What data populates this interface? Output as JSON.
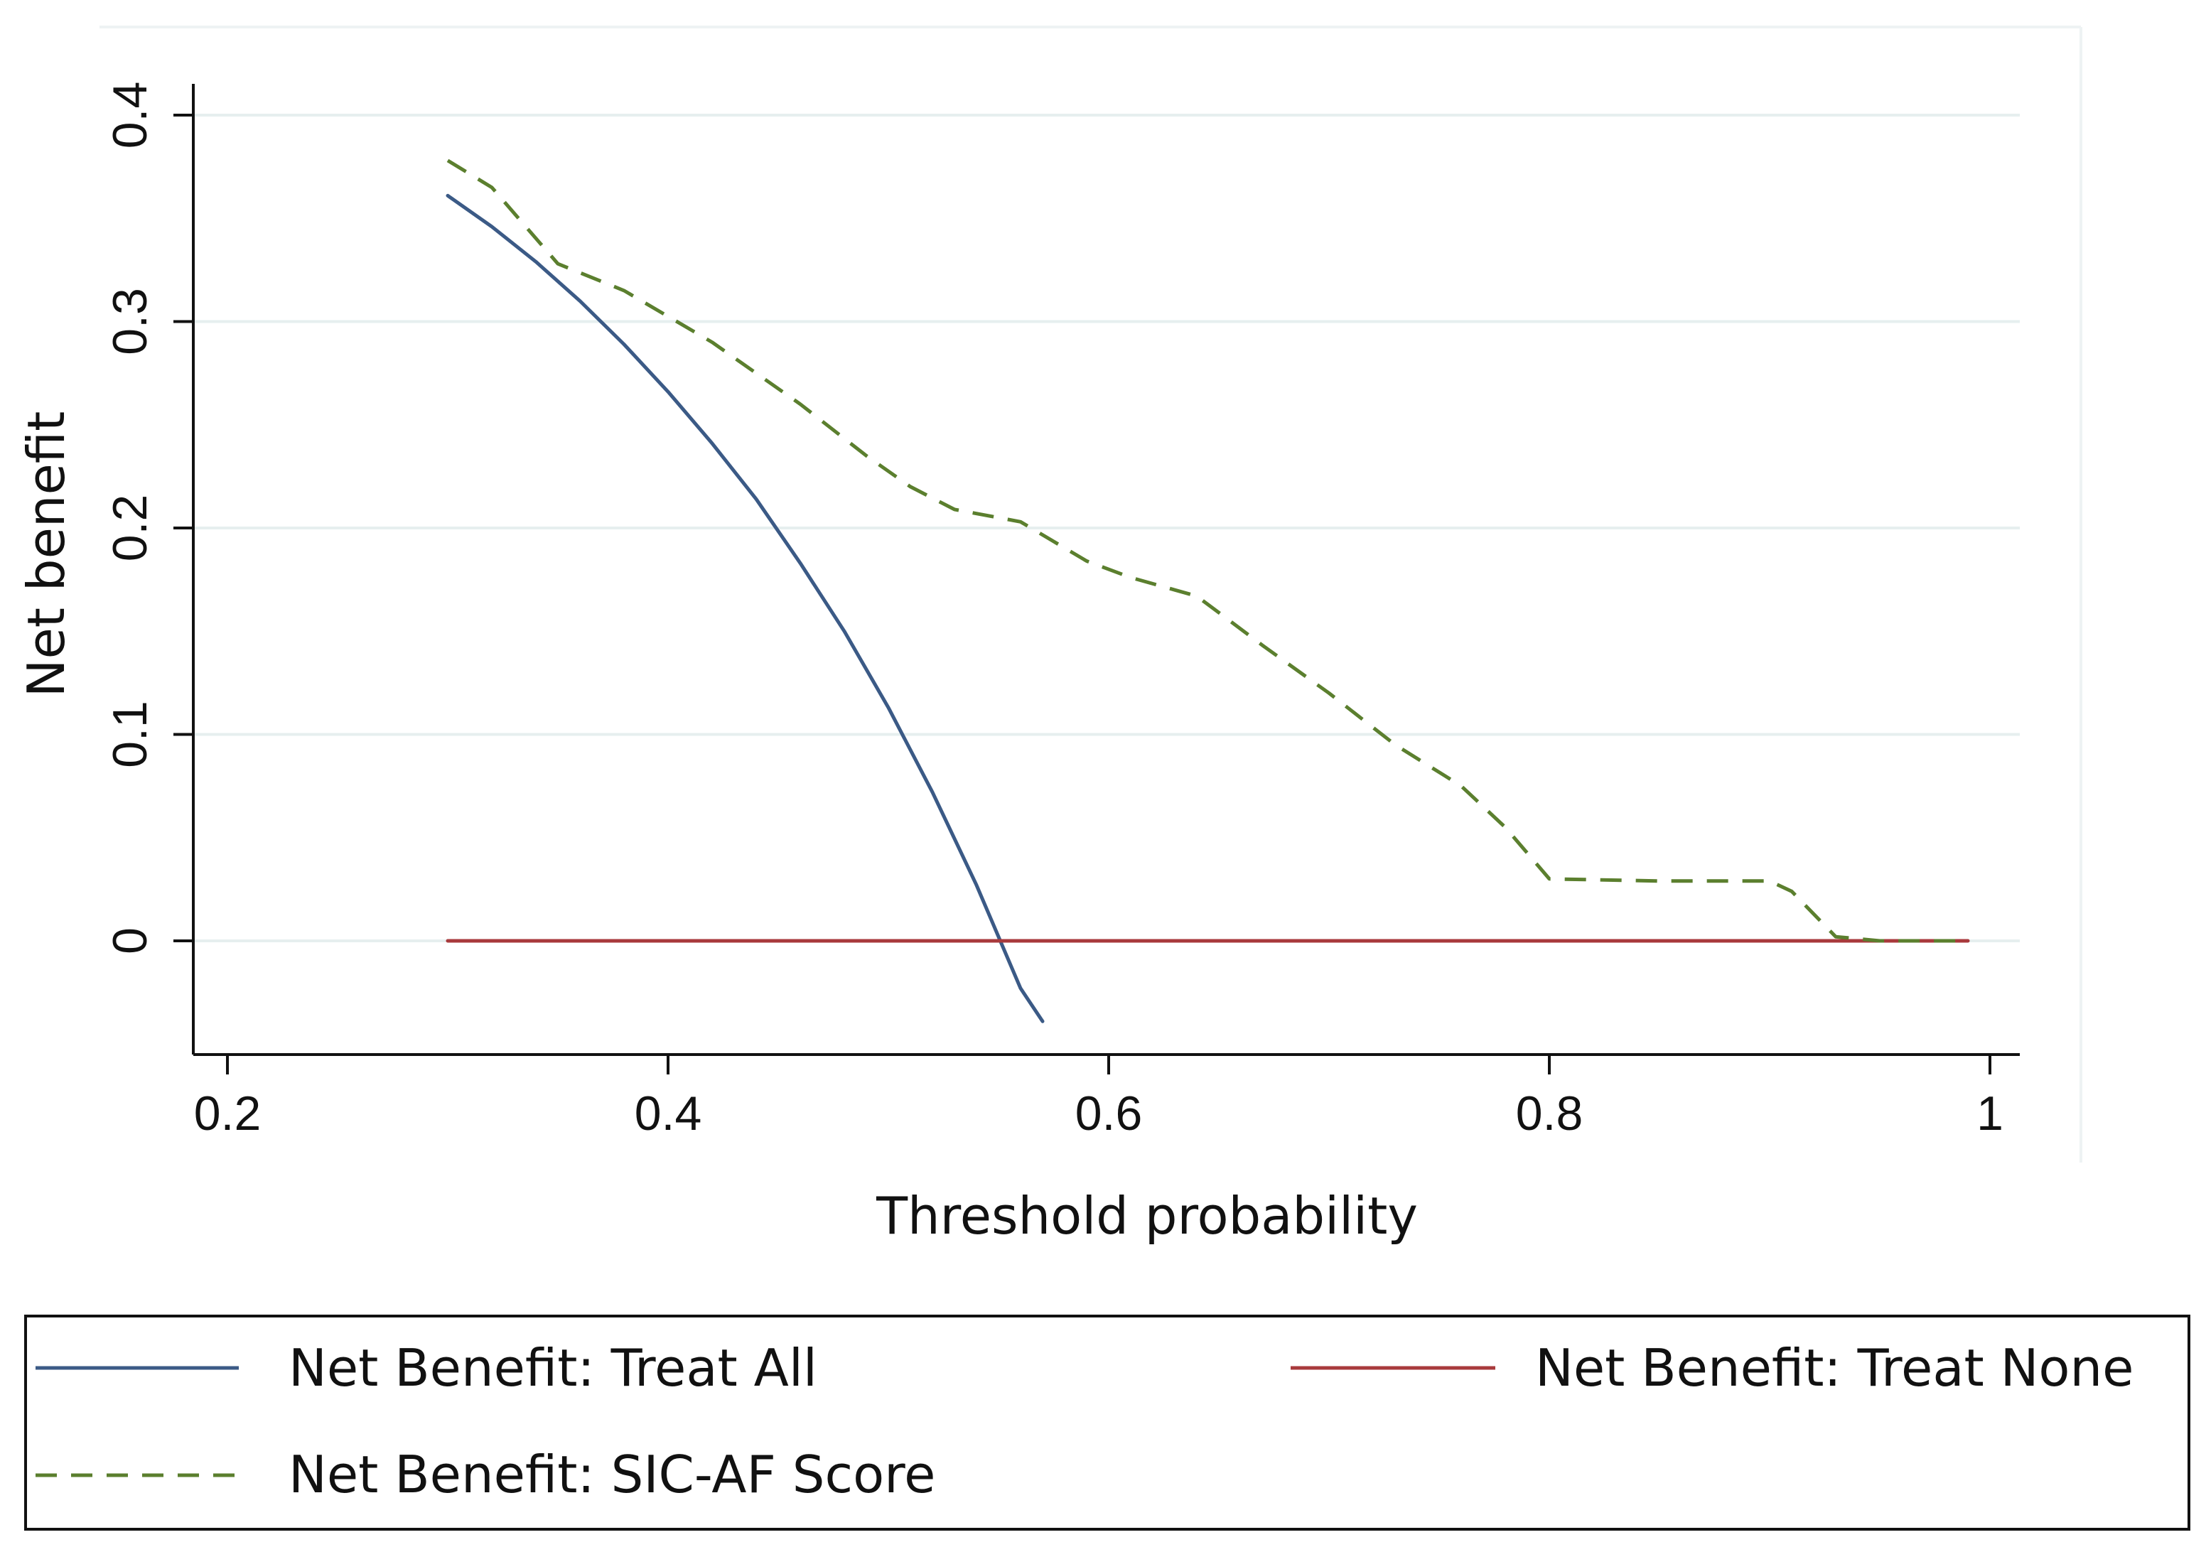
{
  "chart_data": {
    "type": "line",
    "title": "",
    "xlabel": "Threshold probability",
    "ylabel": "Net benefit",
    "xlim": [
      0.2,
      1.0
    ],
    "ylim": [
      -0.05,
      0.4
    ],
    "x_ticks": [
      {
        "value": 0.2,
        "label": "0.2"
      },
      {
        "value": 0.4,
        "label": "0.4"
      },
      {
        "value": 0.6,
        "label": "0.6"
      },
      {
        "value": 0.8,
        "label": "0.8"
      },
      {
        "value": 1.0,
        "label": "1"
      }
    ],
    "y_ticks": [
      {
        "value": 0,
        "label": "0"
      },
      {
        "value": 0.1,
        "label": "0.1"
      },
      {
        "value": 0.2,
        "label": "0.2"
      },
      {
        "value": 0.3,
        "label": "0.3"
      },
      {
        "value": 0.4,
        "label": "0.4"
      }
    ],
    "grid": true,
    "legend_position": "bottom",
    "series": [
      {
        "name": "Net Benefit: Treat All",
        "color": "#3b5a86",
        "dash": "solid",
        "x": [
          0.3,
          0.32,
          0.34,
          0.36,
          0.38,
          0.4,
          0.42,
          0.44,
          0.46,
          0.48,
          0.5,
          0.52,
          0.54,
          0.56,
          0.57
        ],
        "y": [
          0.361,
          0.346,
          0.329,
          0.31,
          0.289,
          0.266,
          0.241,
          0.214,
          0.183,
          0.15,
          0.113,
          0.072,
          0.027,
          -0.023,
          -0.039
        ]
      },
      {
        "name": "Net Benefit: Treat None",
        "color": "#a83a3c",
        "dash": "solid",
        "x": [
          0.3,
          0.99
        ],
        "y": [
          0,
          0
        ]
      },
      {
        "name": "Net Benefit: SIC-AF Score",
        "color": "#5b7f2e",
        "dash": "dashed",
        "x": [
          0.3,
          0.32,
          0.35,
          0.38,
          0.42,
          0.46,
          0.49,
          0.51,
          0.53,
          0.56,
          0.59,
          0.61,
          0.64,
          0.67,
          0.7,
          0.73,
          0.76,
          0.78,
          0.8,
          0.85,
          0.9,
          0.91,
          0.93,
          0.95,
          0.99
        ],
        "y": [
          0.378,
          0.365,
          0.328,
          0.315,
          0.29,
          0.26,
          0.235,
          0.22,
          0.209,
          0.203,
          0.184,
          0.176,
          0.167,
          0.143,
          0.12,
          0.095,
          0.075,
          0.055,
          0.03,
          0.029,
          0.029,
          0.024,
          0.002,
          0.0,
          0.0
        ]
      }
    ]
  }
}
